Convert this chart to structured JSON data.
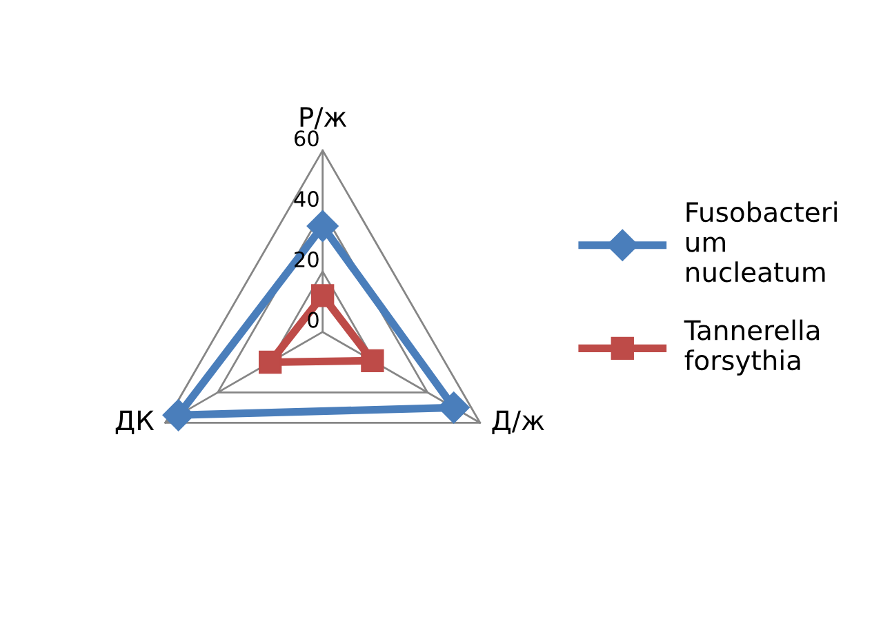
{
  "chart_data": {
    "type": "radar",
    "categories": [
      "Р/ж",
      "Д/ж",
      "ДК"
    ],
    "series": [
      {
        "name": "Fusobacterium nucleatum",
        "color": "#4a7ebb",
        "marker": "diamond",
        "values": [
          35,
          50,
          55
        ]
      },
      {
        "name": "Tannerella forsythia",
        "color": "#be4b48",
        "marker": "square",
        "values": [
          12,
          19,
          20
        ]
      }
    ],
    "ylim": [
      0,
      60
    ],
    "yticks": [
      0,
      20,
      40,
      60
    ],
    "grid": true,
    "legend": "right"
  }
}
